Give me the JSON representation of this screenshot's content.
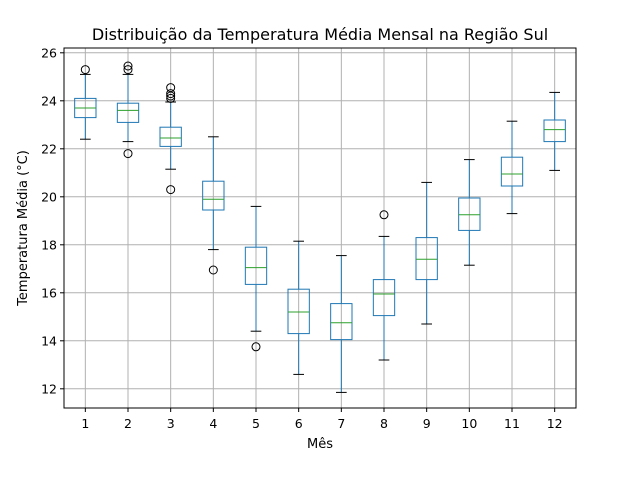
{
  "chart_data": {
    "type": "boxplot",
    "title": "Distribuição da Temperatura Média Mensal na Região Sul",
    "xlabel": "Mês",
    "ylabel": "Temperatura Média (°C)",
    "ylim": [
      11.2,
      26.2
    ],
    "yticks": [
      12,
      14,
      16,
      18,
      20,
      22,
      24,
      26
    ],
    "grid": true,
    "colors": {
      "box": "#1f77b4",
      "median": "#2ca02c",
      "whisker": "#1f77b4",
      "cap": "#000000",
      "grid": "#b0b0b0"
    },
    "categories": [
      "1",
      "2",
      "3",
      "4",
      "5",
      "6",
      "7",
      "8",
      "9",
      "10",
      "11",
      "12"
    ],
    "boxes": [
      {
        "label": "1",
        "whislo": 22.4,
        "q1": 23.3,
        "med": 23.7,
        "q3": 24.1,
        "whishi": 25.1,
        "fliers": [
          25.3
        ]
      },
      {
        "label": "2",
        "whislo": 22.3,
        "q1": 23.1,
        "med": 23.6,
        "q3": 23.9,
        "whishi": 25.1,
        "fliers": [
          25.3,
          25.45,
          21.8
        ]
      },
      {
        "label": "3",
        "whislo": 21.15,
        "q1": 22.1,
        "med": 22.45,
        "q3": 22.9,
        "whishi": 23.95,
        "fliers": [
          24.1,
          24.2,
          24.3,
          24.55,
          20.3
        ]
      },
      {
        "label": "4",
        "whislo": 17.8,
        "q1": 19.45,
        "med": 19.9,
        "q3": 20.65,
        "whishi": 22.5,
        "fliers": [
          16.95
        ]
      },
      {
        "label": "5",
        "whislo": 14.4,
        "q1": 16.35,
        "med": 17.05,
        "q3": 17.9,
        "whishi": 19.6,
        "fliers": [
          13.75
        ]
      },
      {
        "label": "6",
        "whislo": 12.6,
        "q1": 14.3,
        "med": 15.2,
        "q3": 16.15,
        "whishi": 18.15,
        "fliers": []
      },
      {
        "label": "7",
        "whislo": 11.85,
        "q1": 14.05,
        "med": 14.75,
        "q3": 15.55,
        "whishi": 17.55,
        "fliers": []
      },
      {
        "label": "8",
        "whislo": 13.2,
        "q1": 15.05,
        "med": 15.95,
        "q3": 16.55,
        "whishi": 18.35,
        "fliers": [
          19.25
        ]
      },
      {
        "label": "9",
        "whislo": 14.7,
        "q1": 16.55,
        "med": 17.4,
        "q3": 18.3,
        "whishi": 20.6,
        "fliers": []
      },
      {
        "label": "10",
        "whislo": 17.15,
        "q1": 18.6,
        "med": 19.25,
        "q3": 19.95,
        "whishi": 21.55,
        "fliers": []
      },
      {
        "label": "11",
        "whislo": 19.3,
        "q1": 20.45,
        "med": 20.95,
        "q3": 21.65,
        "whishi": 23.15,
        "fliers": []
      },
      {
        "label": "12",
        "whislo": 21.1,
        "q1": 22.3,
        "med": 22.8,
        "q3": 23.2,
        "whishi": 24.35,
        "fliers": []
      }
    ]
  }
}
